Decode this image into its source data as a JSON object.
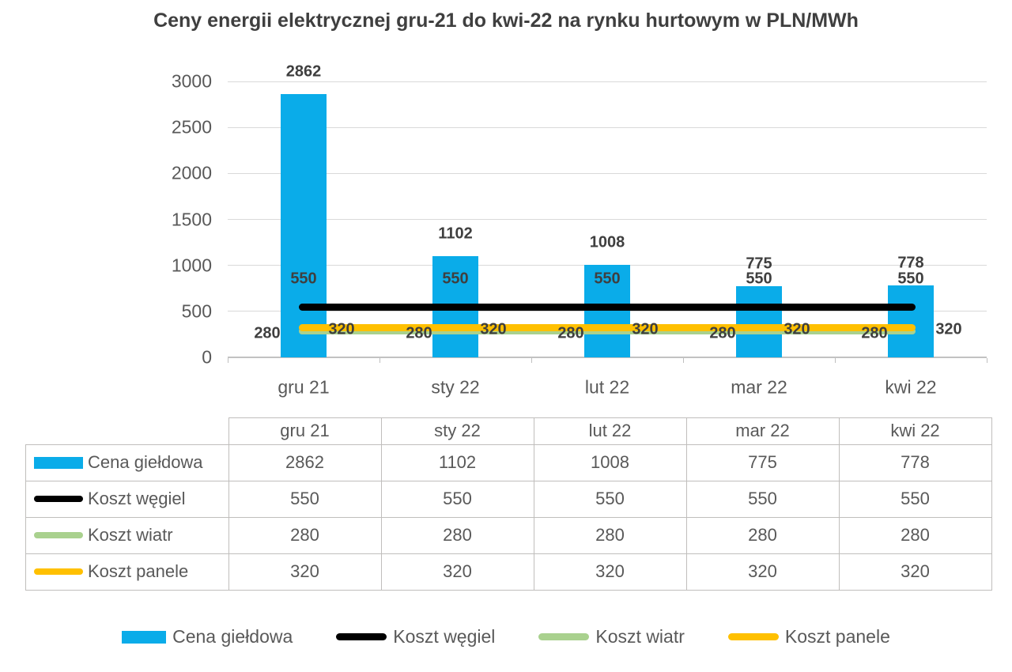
{
  "title": "Ceny energii elektrycznej gru-21 do kwi-22 na rynku hurtowym w PLN/MWh",
  "chart_data": {
    "type": "bar",
    "title": "Ceny energii elektrycznej gru-21 do kwi-22 na rynku hurtowym w PLN/MWh",
    "categories": [
      "gru 21",
      "sty 22",
      "lut 22",
      "mar 22",
      "kwi 22"
    ],
    "series": [
      {
        "name": "Cena giełdowa",
        "kind": "bar",
        "color": "#0aace9",
        "values": [
          2862,
          1102,
          1008,
          775,
          778
        ],
        "label_position": "above"
      },
      {
        "name": "Koszt węgiel",
        "kind": "line",
        "color": "#000000",
        "values": [
          550,
          550,
          550,
          550,
          550
        ],
        "label_position": "above"
      },
      {
        "name": "Koszt wiatr",
        "kind": "line",
        "color": "#a9d18e",
        "values": [
          280,
          280,
          280,
          280,
          280
        ],
        "label_position": "left"
      },
      {
        "name": "Koszt panele",
        "kind": "line",
        "color": "#ffc000",
        "values": [
          320,
          320,
          320,
          320,
          320
        ],
        "label_position": "right"
      }
    ],
    "ylim": [
      0,
      3000
    ],
    "yticks": [
      0,
      500,
      1000,
      1500,
      2000,
      2500,
      3000
    ],
    "grid": true,
    "legend_position": "bottom"
  },
  "table": {
    "corner_label": "",
    "columns": [
      "gru 21",
      "sty 22",
      "lut 22",
      "mar 22",
      "kwi 22"
    ],
    "rows": [
      {
        "label": "Cena giełdowa",
        "values": [
          "2862",
          "1102",
          "1008",
          "775",
          "778"
        ]
      },
      {
        "label": "Koszt węgiel",
        "values": [
          "550",
          "550",
          "550",
          "550",
          "550"
        ]
      },
      {
        "label": "Koszt wiatr",
        "values": [
          "280",
          "280",
          "280",
          "280",
          "280"
        ]
      },
      {
        "label": "Koszt panele",
        "values": [
          "320",
          "320",
          "320",
          "320",
          "320"
        ]
      }
    ]
  },
  "legend": {
    "items": [
      "Cena giełdowa",
      "Koszt węgiel",
      "Koszt wiatr",
      "Koszt panele"
    ]
  },
  "colors": {
    "bar_blue": "#0aace9",
    "line_black": "#000000",
    "line_green": "#a9d18e",
    "line_yellow": "#ffc000",
    "gridline": "#d9d9d9",
    "axis_text": "#595959",
    "label_text": "#3f3f3f"
  }
}
